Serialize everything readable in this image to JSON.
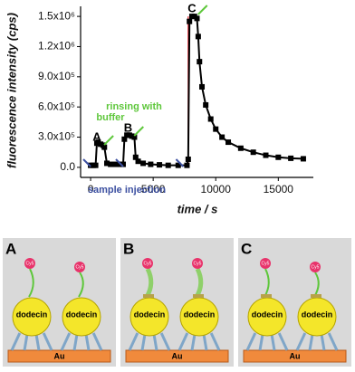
{
  "chart_data": {
    "type": "line",
    "y_label": "fluorescence intensity (cps)",
    "x_label": "time / s",
    "x": [
      0,
      200,
      400,
      500,
      600,
      800,
      1000,
      1100,
      1300,
      1600,
      2000,
      2400,
      2600,
      2700,
      2900,
      3100,
      3300,
      3500,
      3600,
      3800,
      4200,
      4800,
      5500,
      6200,
      7000,
      7700,
      7800,
      7900,
      8100,
      8300,
      8500,
      8600,
      8700,
      8900,
      9200,
      9600,
      10000,
      10500,
      11000,
      12000,
      13000,
      14000,
      15000,
      16000,
      17000
    ],
    "series": [
      {
        "color": "#000000",
        "values": [
          20000,
          20000,
          20000,
          240000,
          250000,
          230000,
          220000,
          200000,
          40000,
          30000,
          30000,
          30000,
          30000,
          280000,
          320000,
          320000,
          310000,
          300000,
          100000,
          60000,
          40000,
          30000,
          25000,
          20000,
          20000,
          20000,
          80000,
          1450000,
          1500000,
          1500000,
          1480000,
          1300000,
          1050000,
          800000,
          620000,
          480000,
          380000,
          300000,
          250000,
          190000,
          150000,
          120000,
          100000,
          90000,
          85000
        ]
      }
    ],
    "xlim": [
      -800,
      17800
    ],
    "ylim": [
      -100000,
      1600000
    ],
    "xticks": [
      0,
      5000,
      10000,
      15000
    ],
    "yticks": [
      {
        "value": 0,
        "label": "0.0"
      },
      {
        "value": 300000,
        "label": "3.0x10⁵"
      },
      {
        "value": 600000,
        "label": "6.0x10⁵"
      },
      {
        "value": 900000,
        "label": "9.0x10⁵"
      },
      {
        "value": 1200000,
        "label": "1.2x10⁶"
      },
      {
        "value": 1500000,
        "label": "1.5x10⁶"
      }
    ],
    "grid": false,
    "annotations": [
      "A",
      "B",
      "C",
      "rinsing with",
      "buffer",
      "sample injection"
    ]
  },
  "diagram": {
    "panels": [
      {
        "label": "A",
        "dyes": [
          "Cy5",
          "Cy5"
        ],
        "proteins": [
          "dodecin",
          "dodecin"
        ],
        "surface": "Au"
      },
      {
        "label": "B",
        "dyes": [
          "Cy5",
          "Cy5"
        ],
        "proteins": [
          "dodecin",
          "dodecin"
        ],
        "surface": "Au"
      },
      {
        "label": "C",
        "dyes": [
          "Cy5",
          "Cy5"
        ],
        "proteins": [
          "dodecin",
          "dodecin"
        ],
        "surface": "Au"
      }
    ]
  }
}
